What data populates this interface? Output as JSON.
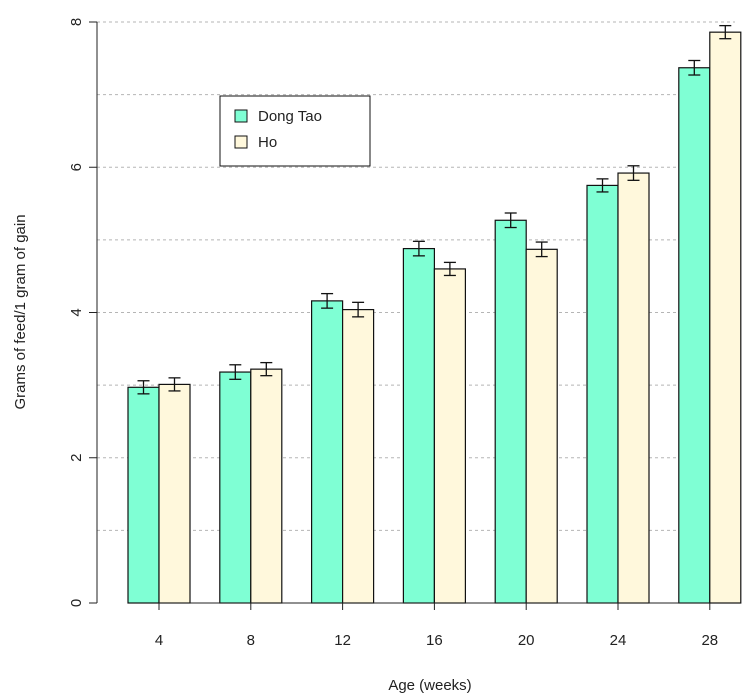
{
  "chart_data": {
    "type": "bar",
    "title": "",
    "xlabel": "Age (weeks)",
    "ylabel": "Grams of feed/1 gram of gain",
    "categories": [
      "4",
      "8",
      "12",
      "16",
      "20",
      "24",
      "28"
    ],
    "ylim": [
      0,
      8
    ],
    "yticks": [
      "0",
      "2",
      "4",
      "6",
      "8"
    ],
    "grid": "horizontal dashed",
    "legend_position": "top-left",
    "error_bars": true,
    "series": [
      {
        "name": "Dong Tao",
        "color": "#7fffd4",
        "values": [
          2.97,
          3.18,
          4.16,
          4.88,
          5.27,
          5.75,
          7.37
        ],
        "errors": [
          0.09,
          0.1,
          0.1,
          0.1,
          0.1,
          0.09,
          0.1
        ]
      },
      {
        "name": "Ho",
        "color": "#fff8dc",
        "values": [
          3.01,
          3.22,
          4.04,
          4.6,
          4.87,
          5.92,
          7.86
        ],
        "errors": [
          0.09,
          0.09,
          0.1,
          0.09,
          0.1,
          0.1,
          0.09
        ]
      }
    ]
  }
}
